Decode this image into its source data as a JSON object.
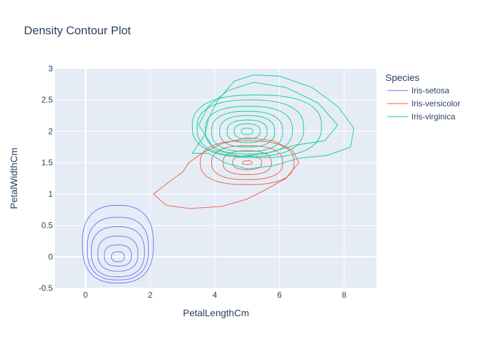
{
  "chart_data": {
    "type": "contour",
    "title": "Density Contour Plot",
    "xlabel": "PetalLengthCm",
    "ylabel": "PetalWidthCm",
    "xlim": [
      -0.95,
      9.0
    ],
    "ylim": [
      -0.5,
      3.0
    ],
    "x_ticks": [
      0,
      2,
      4,
      6,
      8
    ],
    "y_ticks": [
      -0.5,
      0,
      0.5,
      1,
      1.5,
      2,
      2.5,
      3
    ],
    "grid": true,
    "legend": {
      "title": "Species",
      "position": "right"
    },
    "series": [
      {
        "name": "Iris-setosa",
        "color": "#636efa",
        "peak": [
          1.0,
          0.0
        ],
        "levels": [
          {
            "rx": 1.1,
            "ry": 0.62,
            "ox": 0.0,
            "oy": 0.2
          },
          {
            "rx": 0.95,
            "ry": 0.5,
            "ox": 0.0,
            "oy": 0.13
          },
          {
            "rx": 0.82,
            "ry": 0.4,
            "ox": 0.0,
            "oy": 0.08
          },
          {
            "rx": 0.62,
            "ry": 0.28,
            "ox": 0.0,
            "oy": 0.05
          },
          {
            "rx": 0.42,
            "ry": 0.17,
            "ox": 0.0,
            "oy": 0.02
          },
          {
            "rx": 0.2,
            "ry": 0.08,
            "ox": 0.0,
            "oy": 0.0
          }
        ]
      },
      {
        "name": "Iris-versicolor",
        "color": "#ef553b",
        "peak": [
          5.0,
          1.5
        ],
        "levels": [
          {
            "rx": 1.45,
            "ry": 0.35,
            "ox": 0.0,
            "oy": 0.0
          },
          {
            "rx": 1.1,
            "ry": 0.27,
            "ox": 0.0,
            "oy": 0.0
          },
          {
            "rx": 0.75,
            "ry": 0.19,
            "ox": 0.0,
            "oy": 0.0
          },
          {
            "rx": 0.45,
            "ry": 0.11,
            "ox": 0.0,
            "oy": 0.0
          },
          {
            "rx": 0.15,
            "ry": 0.03,
            "ox": 0.0,
            "oy": 0.0
          }
        ],
        "outer": [
          [
            2.1,
            1.0
          ],
          [
            2.6,
            1.2
          ],
          [
            3.0,
            1.35
          ],
          [
            3.2,
            1.5
          ],
          [
            3.6,
            1.65
          ],
          [
            4.2,
            1.8
          ],
          [
            5.0,
            1.9
          ],
          [
            5.8,
            1.85
          ],
          [
            6.4,
            1.7
          ],
          [
            6.6,
            1.5
          ],
          [
            6.2,
            1.25
          ],
          [
            5.5,
            1.05
          ],
          [
            5.0,
            0.92
          ],
          [
            4.2,
            0.8
          ],
          [
            3.2,
            0.77
          ],
          [
            2.5,
            0.82
          ],
          [
            2.1,
            1.0
          ]
        ]
      },
      {
        "name": "Iris-virginica",
        "color": "#00cc96",
        "peak": [
          5.0,
          2.0
        ],
        "levels": [
          {
            "rx": 2.0,
            "ry": 0.5,
            "ox": 0.3,
            "oy": 0.08
          },
          {
            "rx": 1.65,
            "ry": 0.45,
            "ox": 0.1,
            "oy": 0.05
          },
          {
            "rx": 1.35,
            "ry": 0.38,
            "ox": 0.05,
            "oy": 0.02
          },
          {
            "rx": 1.1,
            "ry": 0.32,
            "ox": 0.0,
            "oy": 0.0
          },
          {
            "rx": 0.85,
            "ry": 0.25,
            "ox": 0.0,
            "oy": 0.0
          },
          {
            "rx": 0.62,
            "ry": 0.18,
            "ox": 0.0,
            "oy": 0.0
          },
          {
            "rx": 0.4,
            "ry": 0.12,
            "ox": 0.0,
            "oy": 0.0
          },
          {
            "rx": 0.18,
            "ry": 0.05,
            "ox": 0.0,
            "oy": 0.0
          }
        ],
        "outer": [
          [
            3.3,
            1.65
          ],
          [
            3.7,
            1.95
          ],
          [
            3.8,
            2.2
          ],
          [
            4.1,
            2.5
          ],
          [
            4.6,
            2.8
          ],
          [
            5.2,
            2.9
          ],
          [
            6.0,
            2.88
          ],
          [
            7.0,
            2.7
          ],
          [
            7.8,
            2.4
          ],
          [
            8.3,
            2.05
          ],
          [
            8.2,
            1.75
          ],
          [
            7.5,
            1.62
          ],
          [
            6.6,
            1.57
          ],
          [
            5.8,
            1.45
          ],
          [
            5.0,
            1.4
          ],
          [
            4.3,
            1.5
          ],
          [
            3.8,
            1.65
          ],
          [
            3.3,
            1.65
          ]
        ],
        "second": [
          [
            3.5,
            2.1
          ],
          [
            3.8,
            2.4
          ],
          [
            4.4,
            2.65
          ],
          [
            5.2,
            2.78
          ],
          [
            6.2,
            2.7
          ],
          [
            7.2,
            2.45
          ],
          [
            7.8,
            2.1
          ],
          [
            7.4,
            1.85
          ],
          [
            6.5,
            1.78
          ],
          [
            5.6,
            1.65
          ],
          [
            4.8,
            1.6
          ],
          [
            4.0,
            1.7
          ],
          [
            3.5,
            2.1
          ]
        ]
      }
    ]
  }
}
